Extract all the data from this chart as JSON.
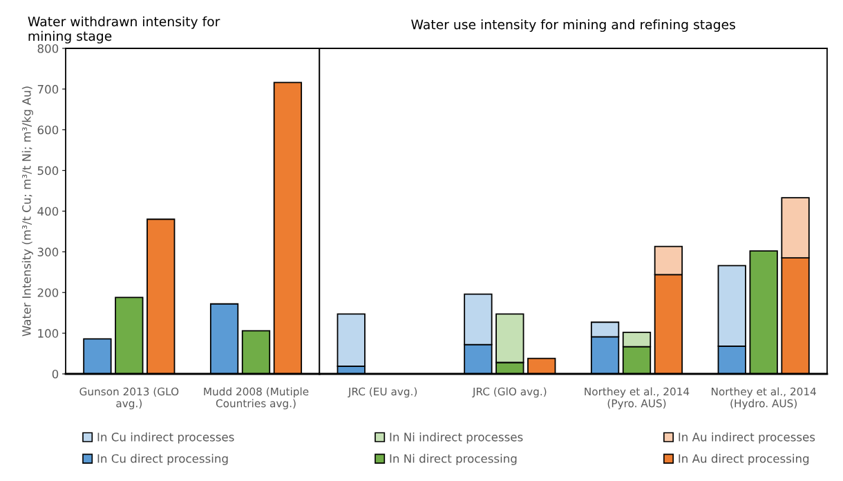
{
  "chart_data": [
    {
      "type": "bar",
      "title": "Water withdrawn intensity for mining stage",
      "ylabel": "Water Intensity (m³/t Cu; m³/t Ni; m³/kg Au)",
      "categories": [
        null,
        "Gunson 2013 (GLO avg.)",
        null,
        null,
        null,
        "Mudd 2008 (Mutiple Countries avg.)",
        null
      ],
      "ylim": [
        0,
        800
      ],
      "yticks": [
        0,
        100,
        200,
        300,
        400,
        500,
        600,
        700,
        800
      ],
      "grid": false,
      "series": [
        {
          "color": "#5b9bd5",
          "values": [
            86,
            null,
            null,
            null,
            172,
            null,
            null
          ]
        },
        {
          "color": "#70ad47",
          "values": [
            null,
            188,
            null,
            null,
            null,
            106,
            null
          ]
        },
        {
          "color": "#ed7d31",
          "values": [
            null,
            null,
            380,
            null,
            null,
            null,
            716
          ]
        }
      ]
    },
    {
      "type": "bar",
      "stacked": true,
      "title": "Water use intensity for mining and refining stages",
      "categories": [
        null,
        "JRC (EU avg.)",
        null,
        null,
        null,
        "JRC (GlO avg.)",
        null,
        null,
        null,
        "Northey et al., 2014 (Pyro. AUS)",
        null,
        null,
        null,
        "Northey et al., 2014 (Hydro. AUS)",
        null
      ],
      "ylim": [
        0,
        800
      ],
      "tick_labels": "x",
      "grid": false,
      "legend": "bottom",
      "series": [
        {
          "name": "In Cu direct processing",
          "color": "#5b9bd5",
          "values": [
            19,
            null,
            null,
            null,
            72,
            null,
            null,
            null,
            91,
            null,
            null,
            null,
            68,
            null,
            null
          ]
        },
        {
          "name": "In Cu indirect processes",
          "color": "#bdd7ee",
          "values": [
            128,
            null,
            null,
            null,
            124,
            null,
            null,
            null,
            36,
            null,
            null,
            null,
            198,
            null,
            null
          ]
        },
        {
          "name": "In Ni direct processing",
          "color": "#70ad47",
          "values": [
            null,
            null,
            null,
            null,
            null,
            28,
            null,
            null,
            null,
            67,
            null,
            null,
            null,
            302,
            null
          ]
        },
        {
          "name": "In Ni indirect processes",
          "color": "#c5e0b4",
          "values": [
            null,
            null,
            null,
            null,
            null,
            119,
            null,
            null,
            null,
            35,
            null,
            null,
            null,
            null,
            null
          ]
        },
        {
          "name": "In Au direct processing",
          "color": "#ed7d31",
          "values": [
            null,
            null,
            null,
            null,
            null,
            null,
            38,
            null,
            null,
            null,
            244,
            null,
            null,
            null,
            285
          ]
        },
        {
          "name": "In Au indirect processes",
          "color": "#f8cbad",
          "values": [
            null,
            null,
            null,
            null,
            null,
            null,
            null,
            null,
            null,
            null,
            69,
            null,
            null,
            null,
            148
          ]
        }
      ]
    }
  ]
}
